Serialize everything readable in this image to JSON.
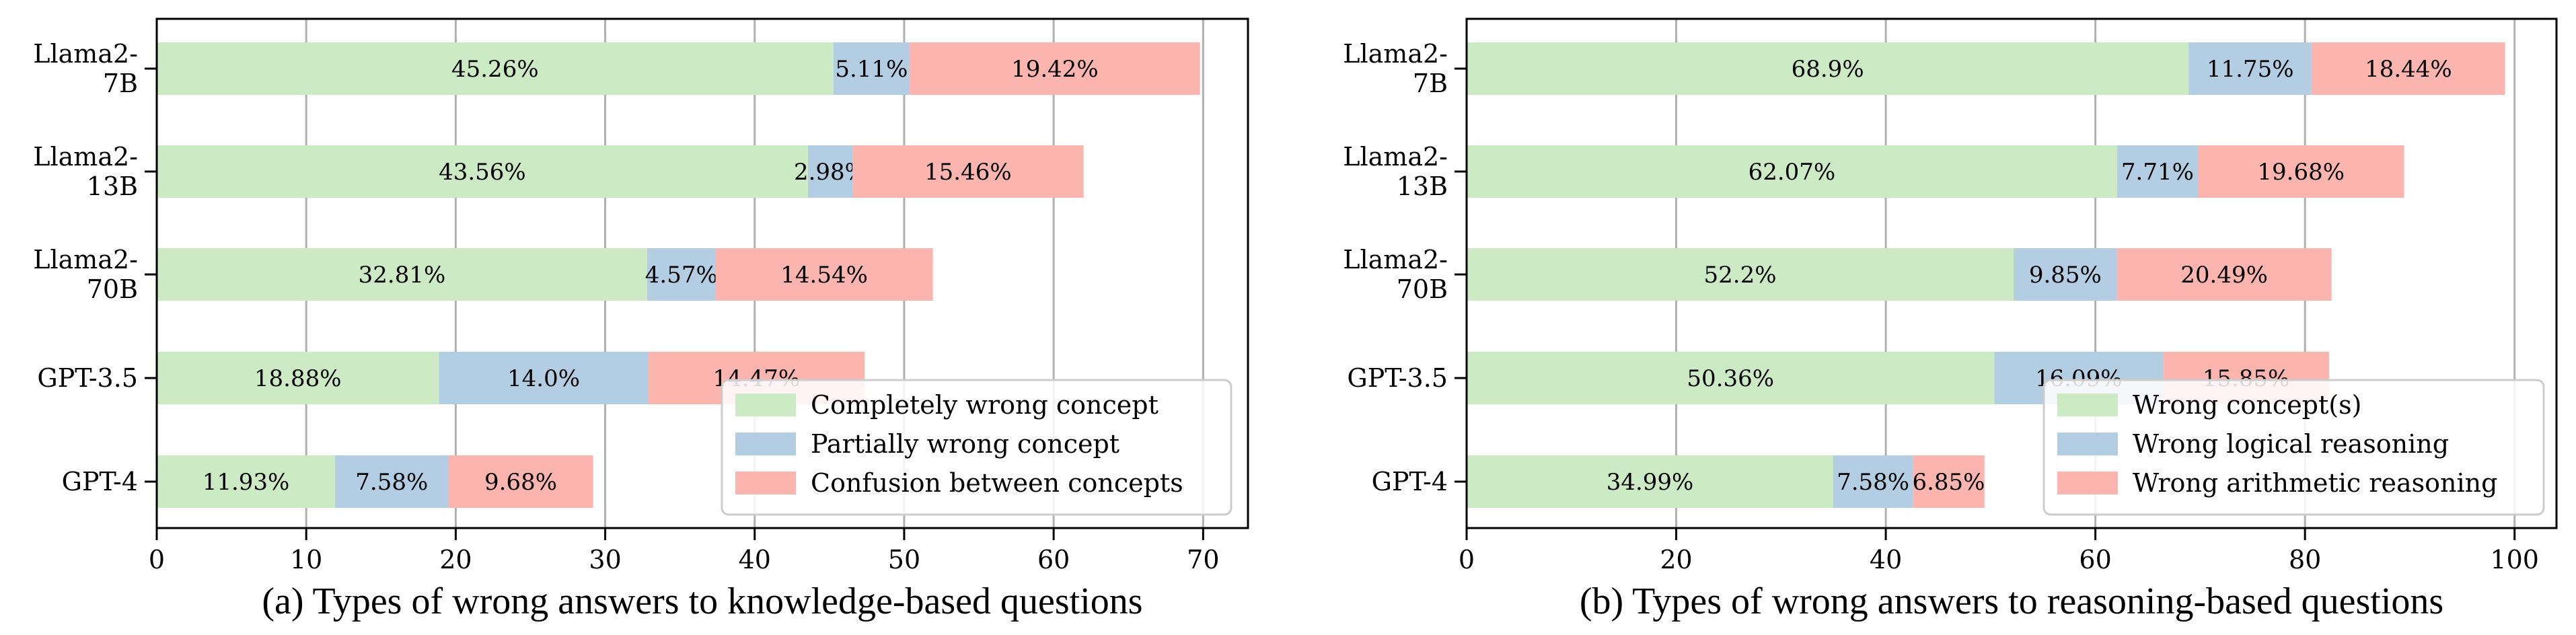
{
  "colors": {
    "series": [
      "#ccebc5",
      "#b3cde3",
      "#fbb4ae"
    ],
    "grid": "#b0b0b0",
    "axis": "#000000"
  },
  "chart_data": [
    {
      "type": "bar",
      "orientation": "horizontal",
      "stacked": true,
      "title": "(a) Types of wrong answers to knowledge-based questions",
      "categories": [
        "Llama2-\n7B",
        "Llama2-\n13B",
        "Llama2-\n70B",
        "GPT-3.5",
        "GPT-4"
      ],
      "series": [
        {
          "name": "Completely wrong concept",
          "values": [
            45.26,
            43.56,
            32.81,
            18.88,
            11.93
          ],
          "labels": [
            "45.26%",
            "43.56%",
            "32.81%",
            "18.88%",
            "11.93%"
          ]
        },
        {
          "name": "Partially wrong concept",
          "values": [
            5.11,
            2.98,
            4.57,
            14.0,
            7.58
          ],
          "labels": [
            "5.11%",
            "2.98%",
            "4.57%",
            "14.0%",
            "7.58%"
          ]
        },
        {
          "name": "Confusion between concepts",
          "values": [
            19.42,
            15.46,
            14.54,
            14.47,
            9.68
          ],
          "labels": [
            "19.42%",
            "15.46%",
            "14.54%",
            "14.47%",
            "9.68%"
          ]
        }
      ],
      "xlim": [
        0,
        73
      ],
      "xticks": [
        0,
        10,
        20,
        30,
        40,
        50,
        60,
        70
      ],
      "xtick_labels": [
        "0",
        "10",
        "20",
        "30",
        "40",
        "50",
        "60",
        "70"
      ],
      "grid": "vertical",
      "legend": "bottom-right"
    },
    {
      "type": "bar",
      "orientation": "horizontal",
      "stacked": true,
      "title": "(b) Types of wrong answers to reasoning-based questions",
      "categories": [
        "Llama2-\n7B",
        "Llama2-\n13B",
        "Llama2-\n70B",
        "GPT-3.5",
        "GPT-4"
      ],
      "series": [
        {
          "name": "Wrong concept(s)",
          "values": [
            68.9,
            62.07,
            52.2,
            50.36,
            34.99
          ],
          "labels": [
            "68.9%",
            "62.07%",
            "52.2%",
            "50.36%",
            "34.99%"
          ]
        },
        {
          "name": "Wrong logical reasoning",
          "values": [
            11.75,
            7.71,
            9.85,
            16.09,
            7.58
          ],
          "labels": [
            "11.75%",
            "7.71%",
            "9.85%",
            "16.09%",
            "7.58%"
          ]
        },
        {
          "name": "Wrong arithmetic reasoning",
          "values": [
            18.44,
            19.68,
            20.49,
            15.85,
            6.85
          ],
          "labels": [
            "18.44%",
            "19.68%",
            "20.49%",
            "15.85%",
            "6.85%"
          ]
        }
      ],
      "xlim": [
        0,
        104
      ],
      "xticks": [
        0,
        20,
        40,
        60,
        80,
        100
      ],
      "xtick_labels": [
        "0",
        "20",
        "40",
        "60",
        "80",
        "100"
      ],
      "grid": "vertical",
      "legend": "bottom-right"
    }
  ]
}
